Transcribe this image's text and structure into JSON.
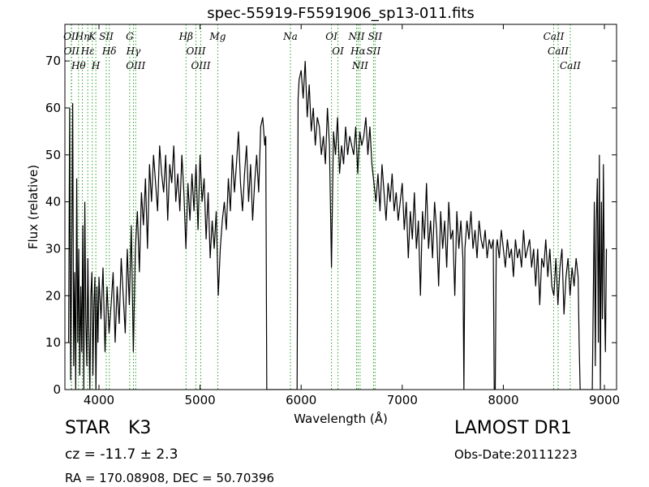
{
  "chart_data": {
    "type": "line",
    "title": "spec-55919-F5591906_sp13-011.fits",
    "x_label": "Wavelength (Å)",
    "y_label": "Flux (relative)",
    "color": "#000000",
    "line_color": "#2ca02c",
    "xlim": [
      3663,
      9120
    ],
    "ylim": [
      0,
      77.8
    ],
    "xticks": [
      4000,
      5000,
      6000,
      7000,
      8000,
      9000
    ],
    "yticks": [
      0,
      10,
      20,
      30,
      40,
      50,
      60,
      70
    ],
    "x": [
      3700,
      3710,
      3720,
      3730,
      3740,
      3750,
      3760,
      3770,
      3780,
      3790,
      3800,
      3810,
      3820,
      3830,
      3840,
      3850,
      3860,
      3870,
      3880,
      3890,
      3900,
      3910,
      3920,
      3930,
      3940,
      3950,
      3960,
      3970,
      3980,
      3990,
      4000,
      4020,
      4040,
      4060,
      4080,
      4100,
      4120,
      4140,
      4160,
      4180,
      4200,
      4220,
      4240,
      4260,
      4280,
      4300,
      4320,
      4340,
      4360,
      4380,
      4400,
      4420,
      4440,
      4460,
      4480,
      4500,
      4520,
      4540,
      4560,
      4580,
      4600,
      4620,
      4640,
      4660,
      4680,
      4700,
      4720,
      4740,
      4760,
      4780,
      4800,
      4820,
      4840,
      4860,
      4880,
      4900,
      4920,
      4940,
      4960,
      4980,
      5000,
      5020,
      5040,
      5060,
      5080,
      5100,
      5120,
      5140,
      5160,
      5180,
      5200,
      5220,
      5240,
      5260,
      5280,
      5300,
      5320,
      5340,
      5360,
      5380,
      5400,
      5420,
      5440,
      5460,
      5480,
      5500,
      5520,
      5540,
      5560,
      5580,
      5600,
      5620,
      5640,
      5650,
      5660,
      5960,
      5970,
      5980,
      6000,
      6020,
      6040,
      6060,
      6080,
      6100,
      6120,
      6140,
      6160,
      6180,
      6200,
      6220,
      6240,
      6260,
      6280,
      6300,
      6320,
      6340,
      6360,
      6380,
      6400,
      6420,
      6440,
      6460,
      6480,
      6500,
      6520,
      6540,
      6560,
      6580,
      6600,
      6620,
      6640,
      6660,
      6680,
      6700,
      6720,
      6740,
      6760,
      6780,
      6800,
      6820,
      6840,
      6860,
      6880,
      6900,
      6920,
      6940,
      6960,
      6980,
      7000,
      7020,
      7040,
      7060,
      7080,
      7100,
      7120,
      7140,
      7160,
      7180,
      7200,
      7220,
      7240,
      7260,
      7280,
      7300,
      7320,
      7340,
      7360,
      7380,
      7400,
      7420,
      7440,
      7460,
      7480,
      7500,
      7520,
      7540,
      7560,
      7580,
      7600,
      7610,
      7620,
      7640,
      7660,
      7680,
      7700,
      7720,
      7740,
      7760,
      7780,
      7800,
      7820,
      7840,
      7860,
      7880,
      7900,
      7910,
      7920,
      7930,
      7940,
      7960,
      7980,
      8000,
      8020,
      8040,
      8060,
      8080,
      8100,
      8120,
      8140,
      8160,
      8180,
      8200,
      8220,
      8240,
      8260,
      8280,
      8300,
      8320,
      8340,
      8360,
      8380,
      8400,
      8420,
      8440,
      8460,
      8480,
      8500,
      8520,
      8540,
      8560,
      8580,
      8600,
      8620,
      8640,
      8660,
      8680,
      8700,
      8720,
      8740,
      8750,
      8760,
      8880,
      8890,
      8900,
      8910,
      8920,
      8930,
      8940,
      8950,
      8960,
      8970,
      8980,
      8990,
      9000,
      9010,
      9020
    ],
    "values": [
      10,
      60,
      2,
      28,
      61,
      5,
      25,
      0,
      45,
      10,
      30,
      3,
      22,
      8,
      35,
      0,
      40,
      15,
      5,
      28,
      12,
      0,
      20,
      25,
      3,
      18,
      24,
      0,
      22,
      10,
      24,
      15,
      26,
      8,
      22,
      12,
      18,
      25,
      10,
      22,
      14,
      28,
      20,
      12,
      30,
      18,
      35,
      8,
      30,
      38,
      25,
      42,
      35,
      45,
      30,
      48,
      40,
      50,
      44,
      38,
      52,
      46,
      42,
      50,
      36,
      48,
      44,
      52,
      40,
      46,
      38,
      50,
      42,
      30,
      44,
      36,
      46,
      38,
      48,
      34,
      50,
      40,
      45,
      32,
      42,
      28,
      36,
      30,
      38,
      20,
      30,
      36,
      40,
      34,
      45,
      38,
      50,
      42,
      48,
      55,
      44,
      38,
      46,
      52,
      40,
      48,
      36,
      44,
      50,
      42,
      56,
      58,
      52,
      54,
      0,
      0,
      62,
      66,
      68,
      62,
      70,
      58,
      65,
      55,
      60,
      52,
      58,
      56,
      50,
      54,
      48,
      60,
      52,
      26,
      55,
      50,
      58,
      46,
      52,
      48,
      56,
      50,
      54,
      52,
      50,
      56,
      46,
      55,
      52,
      54,
      58,
      50,
      56,
      48,
      44,
      40,
      46,
      38,
      48,
      42,
      36,
      44,
      40,
      46,
      38,
      42,
      36,
      40,
      44,
      34,
      40,
      28,
      38,
      32,
      42,
      30,
      36,
      20,
      38,
      32,
      44,
      30,
      36,
      28,
      40,
      34,
      22,
      38,
      30,
      36,
      26,
      40,
      32,
      34,
      20,
      38,
      30,
      36,
      28,
      0,
      30,
      36,
      32,
      38,
      30,
      34,
      28,
      36,
      32,
      30,
      34,
      28,
      32,
      30,
      32,
      0,
      0,
      30,
      32,
      28,
      34,
      30,
      26,
      32,
      28,
      30,
      24,
      32,
      28,
      30,
      26,
      34,
      28,
      30,
      32,
      26,
      30,
      22,
      30,
      18,
      28,
      26,
      32,
      24,
      30,
      22,
      20,
      28,
      18,
      26,
      30,
      16,
      24,
      28,
      20,
      26,
      22,
      28,
      24,
      10,
      0,
      0,
      20,
      40,
      5,
      36,
      45,
      10,
      50,
      0,
      40,
      15,
      48,
      20,
      8,
      30
    ],
    "lines": [
      {
        "label": "OII",
        "wavelength": 3726
      },
      {
        "label": "OII",
        "wavelength": 3729
      },
      {
        "label": "Hθ",
        "wavelength": 3798
      },
      {
        "label": "Hη",
        "wavelength": 3835
      },
      {
        "label": "Hε",
        "wavelength": 3889
      },
      {
        "label": "K",
        "wavelength": 3934
      },
      {
        "label": "H",
        "wavelength": 3969
      },
      {
        "label": "SII",
        "wavelength": 4072
      },
      {
        "label": "Hδ",
        "wavelength": 4102
      },
      {
        "label": "G",
        "wavelength": 4304
      },
      {
        "label": "Hγ",
        "wavelength": 4341
      },
      {
        "label": "OIII",
        "wavelength": 4363
      },
      {
        "label": "Hβ",
        "wavelength": 4861
      },
      {
        "label": "OIII",
        "wavelength": 4959
      },
      {
        "label": "OIII",
        "wavelength": 5007
      },
      {
        "label": "Mg",
        "wavelength": 5175
      },
      {
        "label": "Na",
        "wavelength": 5894
      },
      {
        "label": "OI",
        "wavelength": 6300
      },
      {
        "label": "OI",
        "wavelength": 6364
      },
      {
        "label": "NII",
        "wavelength": 6548
      },
      {
        "label": "Hα",
        "wavelength": 6563
      },
      {
        "label": "NII",
        "wavelength": 6583
      },
      {
        "label": "SII",
        "wavelength": 6716
      },
      {
        "label": "SII",
        "wavelength": 6731
      },
      {
        "label": "CaII",
        "wavelength": 8498
      },
      {
        "label": "CaII",
        "wavelength": 8542
      },
      {
        "label": "CaII",
        "wavelength": 8662
      }
    ]
  },
  "footer": {
    "class": "STAR",
    "subclass": "K3",
    "cz": "cz = -11.7  ± 2.3",
    "coords": "RA = 170.08908, DEC = 50.70396",
    "survey": "LAMOST DR1",
    "obs_date": "Obs-Date:20111223"
  }
}
